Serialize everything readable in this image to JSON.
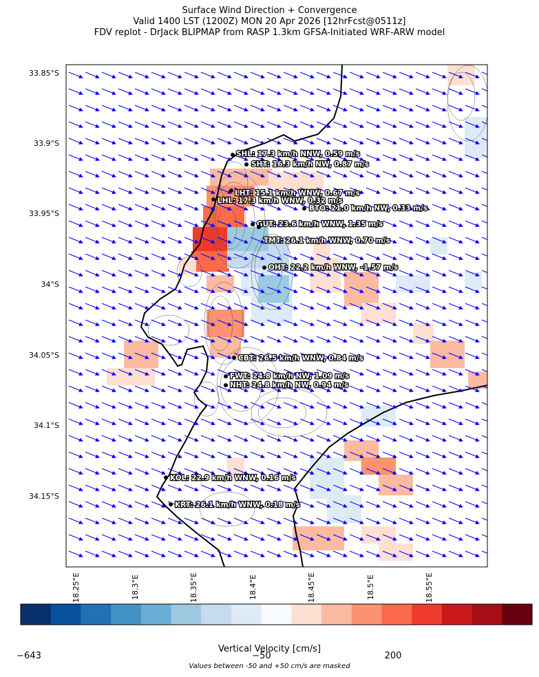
{
  "title": {
    "line1": "Surface Wind Direction + Convergence",
    "line2": "Valid 1400 LST (1200Z) MON 20 Apr 2026 [12hrFcst@0511z]",
    "line3": "FDV replot - DrJack BLIPMAP from RASP 1.3km GFSA-Initiated WRF-ARW model"
  },
  "axes": {
    "lat_labels": [
      "33.85°S",
      "33.9°S",
      "33.95°S",
      "34°S",
      "34.05°S",
      "34.1°S",
      "34.15°S"
    ],
    "lon_labels": [
      "18.25°E",
      "18.3°E",
      "18.35°E",
      "18.4°E",
      "18.45°E",
      "18.5°E",
      "18.55°E"
    ]
  },
  "stations": [
    {
      "id": "SHL",
      "label": "SHL: 17.3 km/h NNW, 0.59 m/s"
    },
    {
      "id": "SHT",
      "label": "SHT: 16.3 km/h NW, 0.87 m/s"
    },
    {
      "id": "LHT",
      "label": "LHT: 15.1 km/h WNW, 0.67 m/s"
    },
    {
      "id": "LHL",
      "label": "LHL: 17.3 km/h WNW, 0.32 m/s"
    },
    {
      "id": "BTO",
      "label": "BTO: 21.0 km/h NW, 0.33 m/s"
    },
    {
      "id": "GUT",
      "label": "GUT: 23.6 km/h WNW, 1.35 m/s"
    },
    {
      "id": "TMT",
      "label": "TMT: 26.1 km/h WNW, 0.70 m/s"
    },
    {
      "id": "OHT",
      "label": "OHT: 22.2 km/h WNW, -1.57 m/s"
    },
    {
      "id": "CBT",
      "label": "CBT: 26.5 km/h WNW, 0.84 m/s"
    },
    {
      "id": "FWT",
      "label": "FWT: 24.8 km/h NW, 1.09 m/s"
    },
    {
      "id": "NHT",
      "label": "NHT: 24.8 km/h NW, 0.94 m/s"
    },
    {
      "id": "KOL",
      "label": "KOL: 22.9 km/h WNW, 0.16 m/s"
    },
    {
      "id": "KRT",
      "label": "KRT: 26.1 km/h WNW, 0.18 m/s"
    }
  ],
  "colorbar": {
    "label": "Vertical Velocity [cm/s]",
    "ticks": [
      "−643",
      "−50",
      "200"
    ],
    "colors": [
      "#08306b",
      "#08519c",
      "#2171b5",
      "#4292c6",
      "#6baed6",
      "#9ecae1",
      "#c6dbef",
      "#deebf7",
      "#f7fbff",
      "#fee0d2",
      "#fcbba1",
      "#fc9272",
      "#fb6a4a",
      "#ef3b2c",
      "#cb181d",
      "#a50f15",
      "#67000d"
    ],
    "note": "Values between -50 and +50 cm/s are masked"
  },
  "wind_vector_color": "#0000ff",
  "coastline_color": "#000000"
}
